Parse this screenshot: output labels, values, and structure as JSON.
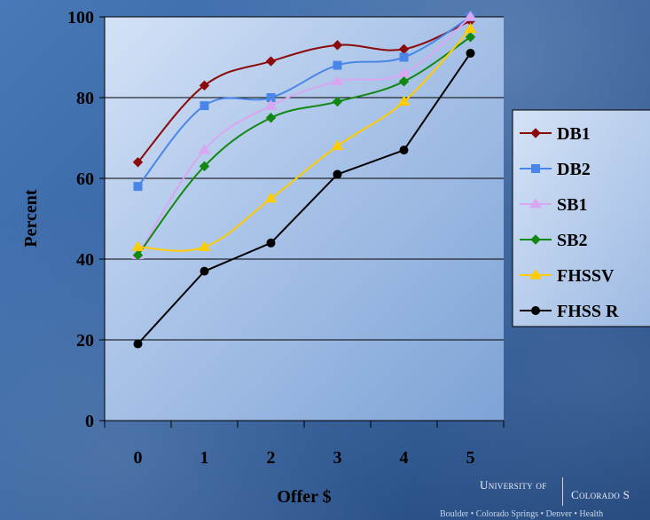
{
  "chart_data": {
    "type": "line",
    "title": "",
    "xlabel": "Offer $",
    "ylabel": "Percent",
    "x": [
      0,
      1,
      2,
      3,
      4,
      5
    ],
    "ylim": [
      0,
      100
    ],
    "yticks": [
      0,
      20,
      40,
      60,
      80,
      100
    ],
    "grid": true,
    "legend_position": "right",
    "series": [
      {
        "name": "DB1",
        "color": "#8b0a0a",
        "marker": "diamond",
        "values": [
          64,
          83,
          89,
          93,
          92,
          99
        ]
      },
      {
        "name": "DB2",
        "color": "#4a86e8",
        "marker": "square",
        "values": [
          58,
          78,
          80,
          88,
          90,
          100
        ]
      },
      {
        "name": "SB1",
        "color": "#d9a6f2",
        "marker": "triangle",
        "values": [
          41,
          67,
          78,
          84,
          86,
          100
        ]
      },
      {
        "name": "SB2",
        "color": "#118811",
        "marker": "diamond",
        "values": [
          41,
          63,
          75,
          79,
          84,
          95
        ]
      },
      {
        "name": "FHSSV",
        "color": "#ffcc00",
        "marker": "triangle",
        "values": [
          43,
          43,
          55,
          68,
          79,
          97
        ]
      },
      {
        "name": "FHSS R",
        "color": "#000000",
        "marker": "circle",
        "values": [
          19,
          37,
          44,
          61,
          67,
          91
        ]
      }
    ]
  },
  "branding": {
    "university_of": "University of",
    "colorado": "Colorado S",
    "campuses": "Boulder • Colorado Springs • Denver • Health"
  }
}
